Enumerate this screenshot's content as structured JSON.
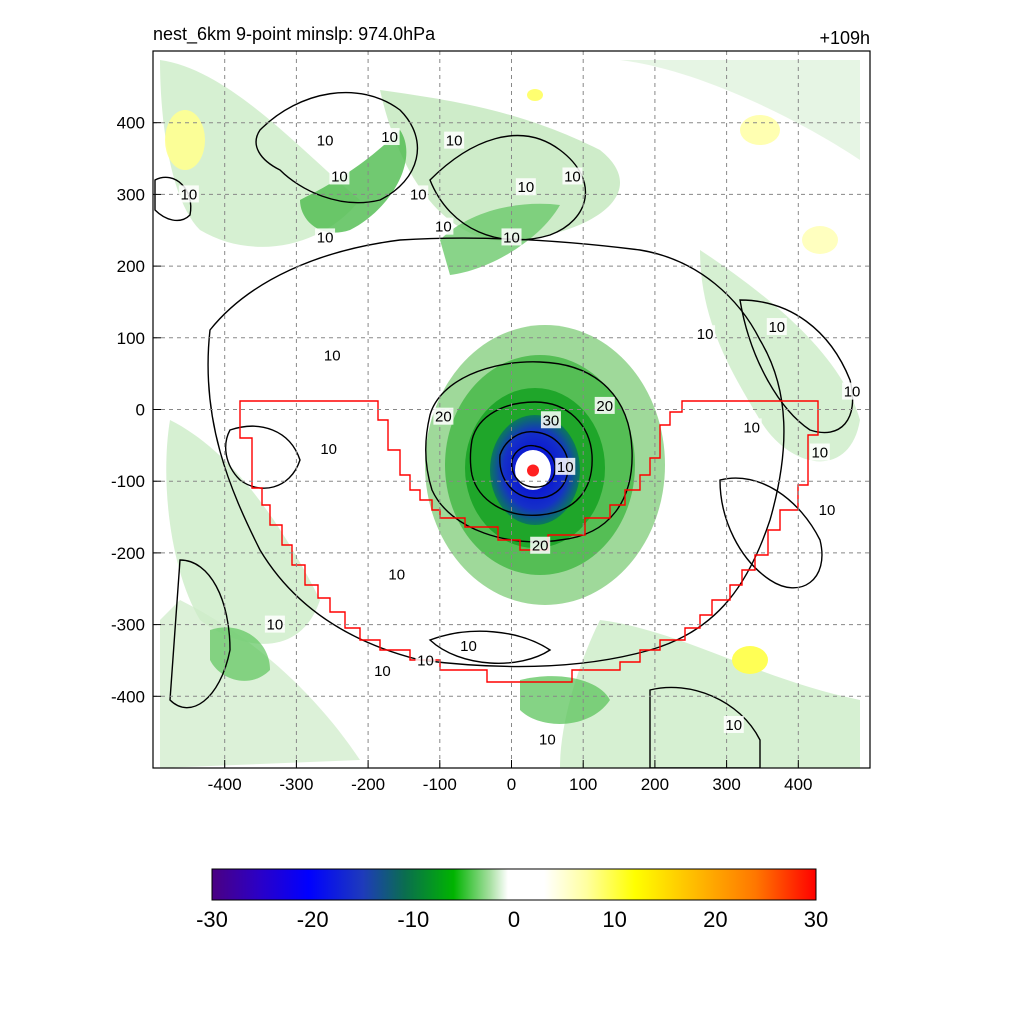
{
  "chart_data": {
    "type": "heatmap",
    "title_left": "nest_6km  9-point minslp: 974.0hPa",
    "title_right": "+109h",
    "xlim": [
      -500,
      500
    ],
    "ylim": [
      -500,
      500
    ],
    "xticks": [
      -400,
      -300,
      -200,
      -100,
      0,
      100,
      200,
      300,
      400
    ],
    "yticks": [
      -400,
      -300,
      -200,
      -100,
      0,
      100,
      200,
      300,
      400
    ],
    "grid": true,
    "colorbar": {
      "range": [
        -30,
        30
      ],
      "ticks": [
        -30,
        -20,
        -10,
        0,
        10,
        20,
        30
      ],
      "placement": "bottom"
    },
    "contour_levels": [
      10,
      20,
      30
    ],
    "center_marker": {
      "x": 30,
      "y": -85,
      "color": "#ff2020"
    },
    "contour_labels": [
      {
        "text": "10",
        "x": -170,
        "y": 380
      },
      {
        "text": "10",
        "x": -260,
        "y": 375
      },
      {
        "text": "10",
        "x": -80,
        "y": 375
      },
      {
        "text": "10",
        "x": -450,
        "y": 300
      },
      {
        "text": "10",
        "x": -240,
        "y": 325
      },
      {
        "text": "10",
        "x": -130,
        "y": 300
      },
      {
        "text": "10",
        "x": 20,
        "y": 310
      },
      {
        "text": "10",
        "x": 85,
        "y": 325
      },
      {
        "text": "10",
        "x": -95,
        "y": 255
      },
      {
        "text": "10",
        "x": 0,
        "y": 240
      },
      {
        "text": "10",
        "x": -260,
        "y": 240
      },
      {
        "text": "10",
        "x": 370,
        "y": 115
      },
      {
        "text": "10",
        "x": 270,
        "y": 105
      },
      {
        "text": "10",
        "x": -250,
        "y": 75
      },
      {
        "text": "10",
        "x": 475,
        "y": 25
      },
      {
        "text": "10",
        "x": 335,
        "y": -25
      },
      {
        "text": "10",
        "x": 430,
        "y": -60
      },
      {
        "text": "10",
        "x": -255,
        "y": -55
      },
      {
        "text": "10",
        "x": 440,
        "y": -140
      },
      {
        "text": "10",
        "x": -160,
        "y": -230
      },
      {
        "text": "10",
        "x": -330,
        "y": -300
      },
      {
        "text": "10",
        "x": -60,
        "y": -330
      },
      {
        "text": "10",
        "x": -120,
        "y": -350
      },
      {
        "text": "10",
        "x": -180,
        "y": -365
      },
      {
        "text": "10",
        "x": 310,
        "y": -440
      },
      {
        "text": "10",
        "x": 50,
        "y": -460
      },
      {
        "text": "20",
        "x": -95,
        "y": -10
      },
      {
        "text": "20",
        "x": 130,
        "y": 5
      },
      {
        "text": "30",
        "x": 55,
        "y": -15
      },
      {
        "text": "20",
        "x": 40,
        "y": -190
      },
      {
        "text": "10",
        "x": 75,
        "y": -80
      }
    ]
  }
}
